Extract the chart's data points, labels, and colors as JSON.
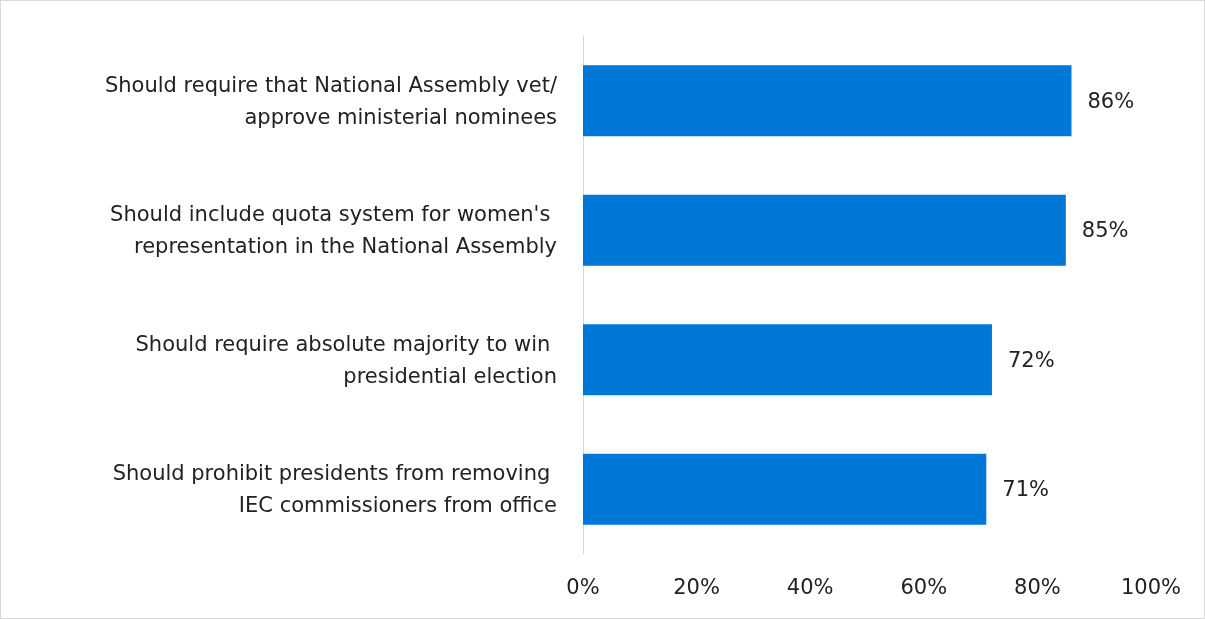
{
  "chart_data": {
    "type": "bar",
    "orientation": "horizontal",
    "categories": [
      "Should require that National Assembly vet/approve ministerial nominees",
      "Should include quota system for women's representation in the National Assembly",
      "Should require absolute majority to win presidential election",
      "Should prohibit presidents from removing IEC commissioners from office"
    ],
    "values": [
      86,
      85,
      72,
      71
    ],
    "value_labels": [
      "86%",
      "85%",
      "72%",
      "71%"
    ],
    "color": "#0078d7",
    "xlim": [
      0,
      100
    ],
    "xticks": [
      {
        "value": 0,
        "label": "0%"
      },
      {
        "value": 20,
        "label": "20%"
      },
      {
        "value": 40,
        "label": "40%"
      },
      {
        "value": 60,
        "label": "60%"
      },
      {
        "value": 80,
        "label": "80%"
      },
      {
        "value": 100,
        "label": "100%"
      }
    ],
    "grid": false
  }
}
